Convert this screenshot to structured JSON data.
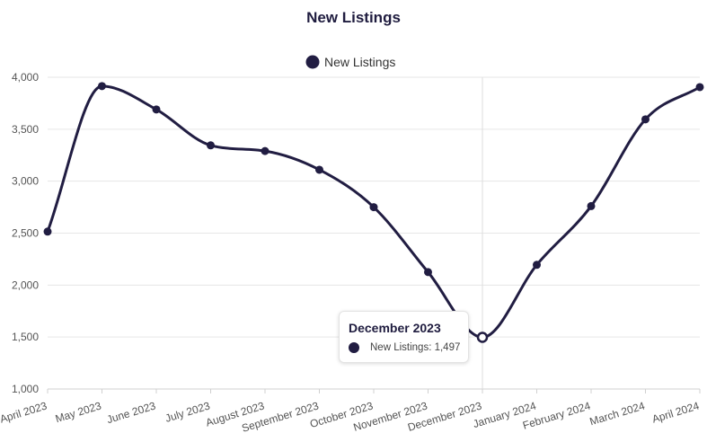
{
  "chart_data": {
    "type": "line",
    "title": "New Listings",
    "categories": [
      "April 2023",
      "May 2023",
      "June 2023",
      "July 2023",
      "August 2023",
      "September 2023",
      "October 2023",
      "November 2023",
      "December 2023",
      "January 2024",
      "February 2024",
      "March 2024",
      "April 2024"
    ],
    "series": [
      {
        "name": "New Listings",
        "values": [
          2515,
          3915,
          3690,
          3345,
          3290,
          3110,
          2750,
          2125,
          1497,
          2195,
          2760,
          3595,
          3905
        ]
      }
    ],
    "ylim": [
      1000,
      4000
    ],
    "yticks": [
      "1,000",
      "1,500",
      "2,000",
      "2,500",
      "3,000",
      "3,500",
      "4,000"
    ],
    "ytick_values": [
      1000,
      1500,
      2000,
      2500,
      3000,
      3500,
      4000
    ],
    "grid": true,
    "legend_position": "top",
    "line_color": "#211d42",
    "tooltip": {
      "title": "December 2023",
      "label": "New Listings: 1,497",
      "index": 8
    }
  }
}
